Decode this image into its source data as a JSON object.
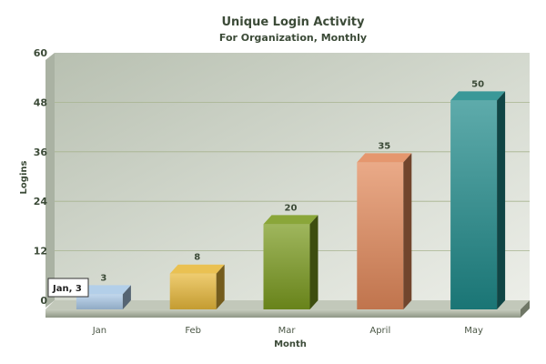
{
  "chart_data": {
    "type": "bar",
    "title": "Unique Login Activity",
    "subtitle": "For Organization, Monthly",
    "xlabel": "Month",
    "ylabel": "Logins",
    "categories": [
      "Jan",
      "Feb",
      "Mar",
      "April",
      "May"
    ],
    "values": [
      3,
      8,
      20,
      35,
      50
    ],
    "value_labels": [
      "3",
      "8",
      "20",
      "35",
      "50"
    ],
    "ylim": [
      0,
      60
    ],
    "yticks": [
      "0",
      "12",
      "24",
      "36",
      "48",
      "60"
    ],
    "grid": true,
    "style": "3d-column",
    "colors": [
      "#a9c8e6",
      "#e7b83a",
      "#7a9a1e",
      "#e2895a",
      "#1f8a8a"
    ],
    "tooltip": "Jan, 3"
  }
}
